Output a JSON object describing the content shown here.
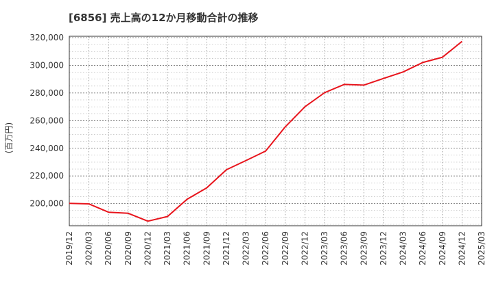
{
  "chart_data": {
    "type": "line",
    "title": "[6856]  売上高の12か月移動合計の推移",
    "xlabel": "",
    "ylabel": "(百万円)",
    "ylim": [
      184000,
      321000
    ],
    "grid": true,
    "y_ticks": [
      200000,
      220000,
      240000,
      260000,
      280000,
      300000,
      320000
    ],
    "y_tick_labels": [
      "200,000",
      "220,000",
      "240,000",
      "260,000",
      "280,000",
      "300,000",
      "320,000"
    ],
    "categories": [
      "2019/12",
      "2020/03",
      "2020/06",
      "2020/09",
      "2020/12",
      "2021/03",
      "2021/06",
      "2021/09",
      "2021/12",
      "2022/03",
      "2022/06",
      "2022/09",
      "2022/12",
      "2023/03",
      "2023/06",
      "2023/09",
      "2023/12",
      "2024/03",
      "2024/06",
      "2024/09",
      "2024/12",
      "2025/03"
    ],
    "series": [
      {
        "name": "売上高の12か月移動合計",
        "color": "#e8141c",
        "values": [
          200200,
          199800,
          193800,
          193000,
          187300,
          190700,
          203200,
          211400,
          224500,
          231200,
          238000,
          255500,
          270000,
          280200,
          286200,
          285700,
          290500,
          295200,
          302000,
          305800,
          317300,
          null
        ]
      }
    ]
  }
}
